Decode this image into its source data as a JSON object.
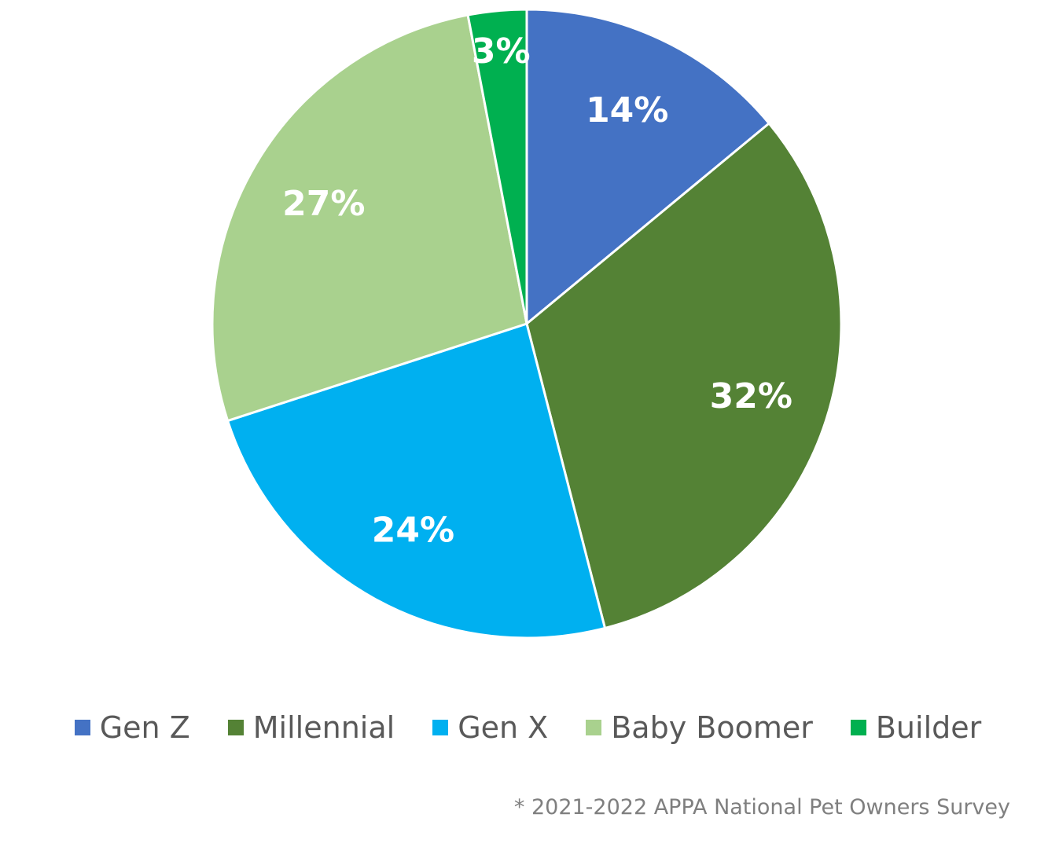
{
  "chart_data": {
    "type": "pie",
    "categories": [
      "Gen Z",
      "Millennial",
      "Gen X",
      "Baby Boomer",
      "Builder"
    ],
    "values": [
      14,
      32,
      24,
      27,
      3
    ],
    "data_labels": [
      "14%",
      "32%",
      "24%",
      "27%",
      "3%"
    ],
    "colors": [
      "#4472C4",
      "#548235",
      "#00B0F0",
      "#A9D18E",
      "#00B050"
    ],
    "start_angle": "12 o'clock",
    "direction": "clockwise",
    "legend_placement": "bottom"
  },
  "legend": {
    "items": [
      {
        "label": "Gen Z",
        "color": "#4472C4"
      },
      {
        "label": "Millennial",
        "color": "#548235"
      },
      {
        "label": "Gen X",
        "color": "#00B0F0"
      },
      {
        "label": "Baby Boomer",
        "color": "#A9D18E"
      },
      {
        "label": "Builder",
        "color": "#00B050"
      }
    ]
  },
  "footnote": "* 2021-2022 APPA National Pet Owners Survey"
}
